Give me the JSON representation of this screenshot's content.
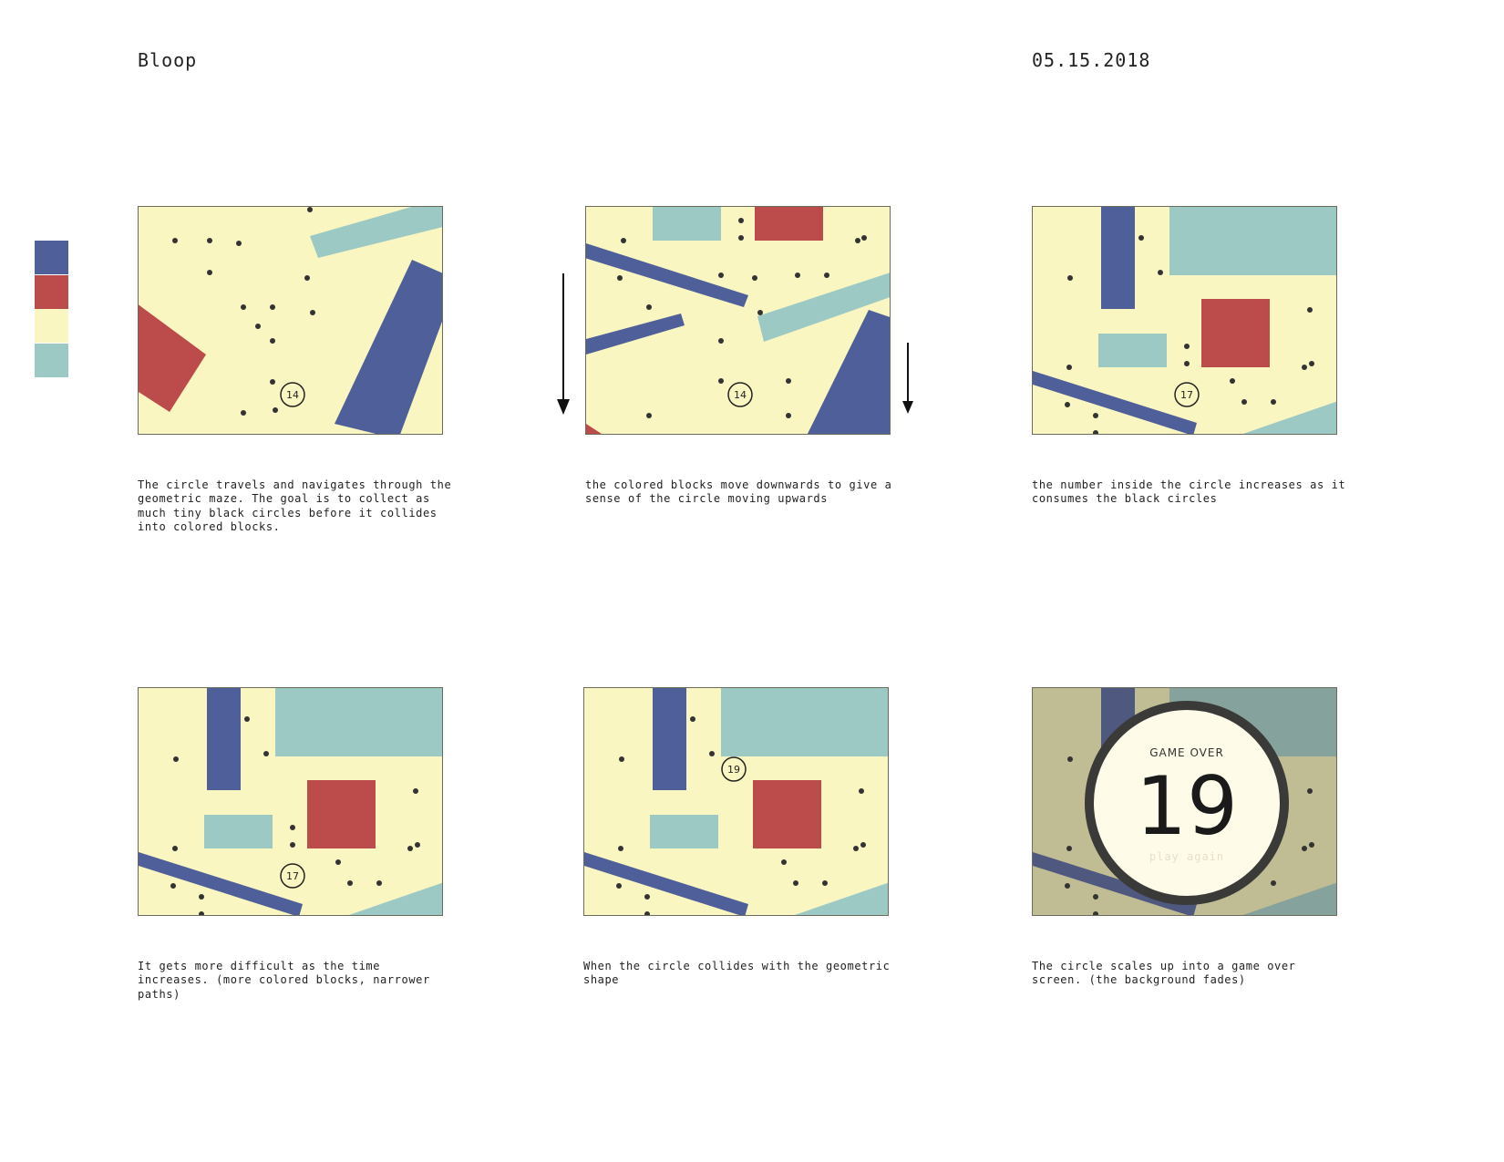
{
  "header": {
    "title": "Bloop",
    "date": "05.15.2018"
  },
  "palette": [
    "#4f5f9a",
    "#bc4b4b",
    "#faf6c1",
    "#9dc9c5"
  ],
  "frames": [
    {
      "score": "14",
      "caption": "The circle travels and navigates through the\ngeometric maze. The goal is to collect as\nmuch tiny black circles before it collides\ninto colored blocks."
    },
    {
      "score": "14",
      "caption": "the colored blocks move downwards to give a\nsense of the circle moving upwards"
    },
    {
      "score": "17",
      "caption": "the number inside the circle increases as it\nconsumes the black circles"
    },
    {
      "score": "17",
      "caption": "It gets more difficult as the time\nincreases. (more colored blocks, narrower\npaths)"
    },
    {
      "score": "19",
      "caption": "When the circle collides with the geometric\nshape"
    },
    {
      "score": "19",
      "caption": "The circle scales up into a game over\nscreen. (the background fades)",
      "game_over_label": "GAME OVER",
      "play_again_label": "play again"
    }
  ]
}
